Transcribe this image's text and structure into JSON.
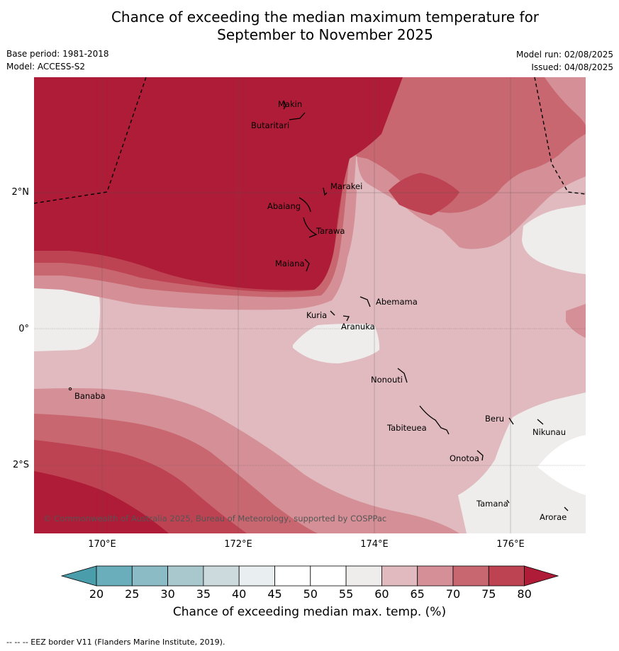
{
  "title_line1": "Chance of exceeding the median maximum temperature for",
  "title_line2": "September to November 2025",
  "base_period": "Base period: 1981-2018",
  "model": "Model: ACCESS-S2",
  "model_run": "Model run: 02/08/2025",
  "issued": "Issued: 04/08/2025",
  "y_axis_labels": [
    "2°N",
    "0°",
    "2°S"
  ],
  "x_axis_labels": [
    "170°E",
    "172°E",
    "174°E",
    "176°E"
  ],
  "places": [
    {
      "name": "Makin"
    },
    {
      "name": "Butaritari"
    },
    {
      "name": "Marakei"
    },
    {
      "name": "Abaiang"
    },
    {
      "name": "Tarawa"
    },
    {
      "name": "Maiana"
    },
    {
      "name": "Abemama"
    },
    {
      "name": "Kuria"
    },
    {
      "name": "Aranuka"
    },
    {
      "name": "Nonouti"
    },
    {
      "name": "Banaba"
    },
    {
      "name": "Beru"
    },
    {
      "name": "Tabiteuea"
    },
    {
      "name": "Nikunau"
    },
    {
      "name": "Onotoa"
    },
    {
      "name": "Tamana"
    },
    {
      "name": "Arorae"
    }
  ],
  "copyright": "© Commonwealth of Australia 2025, Bureau of Meteorology, supported by COSPPac",
  "colorbar": {
    "ticks": [
      "20",
      "25",
      "30",
      "35",
      "40",
      "45",
      "50",
      "55",
      "60",
      "65",
      "70",
      "75",
      "80"
    ],
    "colors": {
      "lt20": "#4a9eac",
      "20-25": "#6aaebc",
      "25-30": "#8bbcc6",
      "30-35": "#a9c8cd",
      "35-40": "#ccdadd",
      "40-45": "#e9eff1",
      "45-50": "#ffffff",
      "50-55": "#ffffff",
      "55-60": "#efedec",
      "60-65": "#e0babf",
      "65-70": "#d48f97",
      "70-75": "#c96770",
      "75-80": "#bd4352",
      "gt80": "#ae1c37"
    },
    "label": "Chance of exceeding median max. temp. (%)"
  },
  "footnote": "--  --  -- EEZ border V11 (Flanders Marine Institute, 2019)."
}
